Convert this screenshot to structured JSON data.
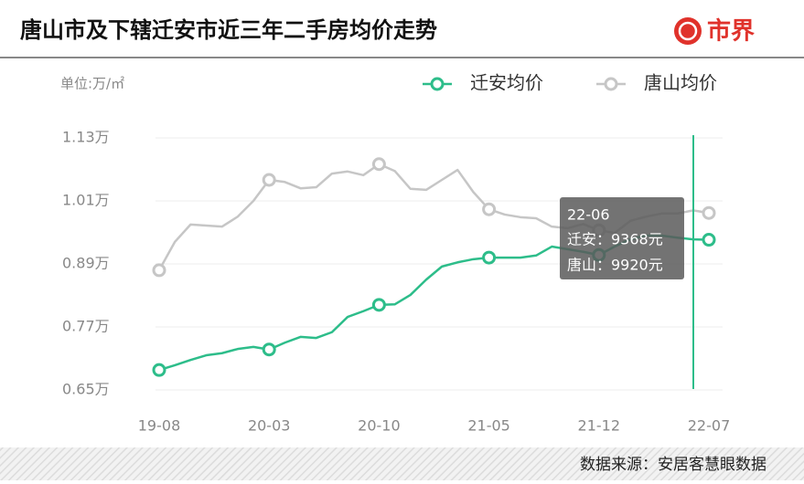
{
  "header": {
    "title": "唐山市及下辖迁安市近三年二手房均价走势",
    "logo": "市界"
  },
  "chart_data": {
    "type": "line",
    "unit": "单位:万/㎡",
    "categories": [
      "19-08",
      null,
      null,
      null,
      null,
      null,
      null,
      "20-03",
      null,
      null,
      null,
      null,
      null,
      null,
      "20-10",
      null,
      null,
      null,
      null,
      null,
      null,
      "21-05",
      null,
      null,
      null,
      null,
      null,
      null,
      "21-12",
      null,
      null,
      null,
      null,
      null,
      null,
      "22-07"
    ],
    "series": [
      {
        "name": "迁安均价",
        "color": "#2dbd8a",
        "values": [
          0.688,
          0.697,
          0.707,
          0.716,
          0.72,
          0.728,
          0.732,
          0.727,
          0.74,
          0.751,
          0.749,
          0.76,
          0.789,
          0.8,
          0.812,
          0.813,
          0.831,
          0.86,
          0.885,
          0.893,
          0.899,
          0.902,
          0.902,
          0.902,
          0.906,
          0.923,
          0.918,
          0.913,
          0.907,
          0.923,
          0.937,
          0.944,
          0.944,
          0.94,
          0.9368,
          0.936
        ]
      },
      {
        "name": "唐山均价",
        "color": "#c6c6c6",
        "values": [
          0.878,
          0.932,
          0.965,
          0.963,
          0.961,
          0.98,
          1.01,
          1.05,
          1.046,
          1.034,
          1.036,
          1.062,
          1.066,
          1.059,
          1.08,
          1.067,
          1.033,
          1.031,
          1.05,
          1.069,
          1.027,
          0.994,
          0.984,
          0.979,
          0.977,
          0.961,
          0.958,
          0.966,
          0.954,
          0.949,
          0.972,
          0.98,
          0.986,
          0.986,
          0.992,
          0.987
        ]
      }
    ],
    "ylim": [
      0.65,
      1.13
    ],
    "yticks": [
      {
        "value": 0.65,
        "label": "0.65万"
      },
      {
        "value": 0.77,
        "label": "0.77万"
      },
      {
        "value": 0.89,
        "label": "0.89万"
      },
      {
        "value": 1.01,
        "label": "1.01万"
      },
      {
        "value": 1.13,
        "label": "1.13万"
      }
    ],
    "grid": true,
    "tooltip": {
      "title": "22-06",
      "lines": [
        "迁安：9368元",
        "唐山：9920元"
      ]
    }
  },
  "footer": {
    "source": "数据来源：安居客慧眼数据"
  }
}
